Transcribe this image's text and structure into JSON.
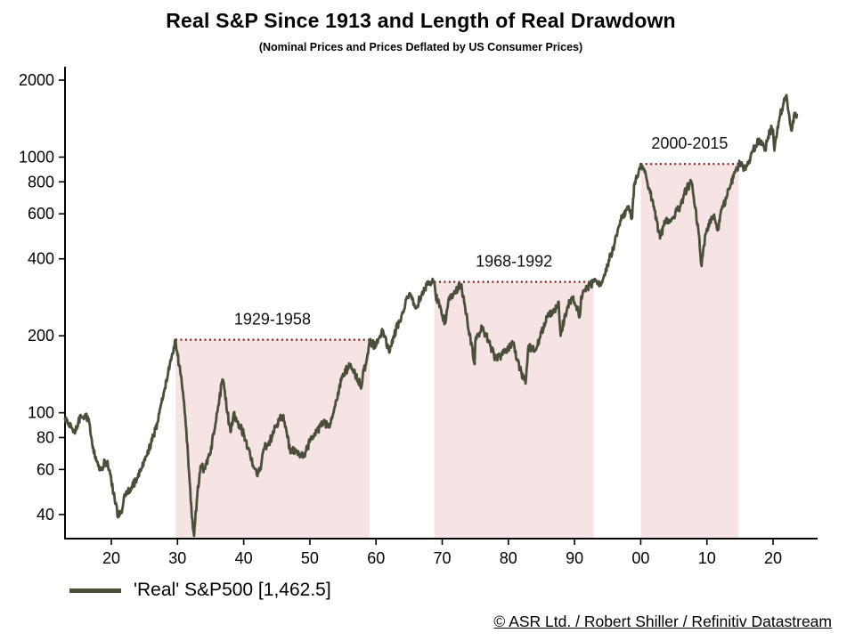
{
  "colors": {
    "line": "#4a4f3a",
    "region_fill": "#f6e3e3",
    "drawdown_line": "#8c1a1a",
    "axis": "#000000",
    "background": "#ffffff"
  },
  "chart_data": {
    "type": "line",
    "title": "Real S&P Since 1913 and Length of Real Drawdown",
    "subtitle": "(Nominal Prices and Prices Deflated by US Consumer Prices)",
    "source": "© ASR Ltd. / Robert Shiller / Refinitiv Datastream",
    "legend_label": "'Real' S&P500 [1,462.5]",
    "legend_position": "bottom-left",
    "grid": false,
    "y_scale": "log",
    "y_ticks": [
      2000,
      1000,
      800,
      600,
      400,
      200,
      100,
      80,
      60,
      40
    ],
    "y_range": [
      32,
      2255
    ],
    "x_range": [
      1913,
      2027
    ],
    "x_ticks": [
      {
        "year": 1920,
        "label": "20"
      },
      {
        "year": 1930,
        "label": "30"
      },
      {
        "year": 1940,
        "label": "40"
      },
      {
        "year": 1950,
        "label": "50"
      },
      {
        "year": 1960,
        "label": "60"
      },
      {
        "year": 1970,
        "label": "70"
      },
      {
        "year": 1980,
        "label": "80"
      },
      {
        "year": 1990,
        "label": "90"
      },
      {
        "year": 2000,
        "label": "00"
      },
      {
        "year": 2010,
        "label": "10"
      },
      {
        "year": 2020,
        "label": "20"
      }
    ],
    "drawdowns": [
      {
        "label": "1929-1958",
        "start_year": 1929.7,
        "end_year": 1959,
        "level": 193
      },
      {
        "label": "1968-1992",
        "start_year": 1968.8,
        "end_year": 1992.9,
        "level": 325
      },
      {
        "label": "2000-2015",
        "start_year": 2000,
        "end_year": 2014.8,
        "level": 940
      }
    ],
    "series": [
      {
        "name": "'Real' S&P500",
        "latest": 1462.5,
        "points": [
          [
            1913,
            95
          ],
          [
            1913.5,
            90
          ],
          [
            1914,
            87
          ],
          [
            1914.5,
            83
          ],
          [
            1915,
            92
          ],
          [
            1915.5,
            96
          ],
          [
            1916,
            98
          ],
          [
            1916.5,
            94
          ],
          [
            1917,
            80
          ],
          [
            1917.5,
            68
          ],
          [
            1918,
            62
          ],
          [
            1918.5,
            60
          ],
          [
            1919,
            65
          ],
          [
            1919.5,
            62
          ],
          [
            1920,
            54
          ],
          [
            1920.5,
            46
          ],
          [
            1921,
            39
          ],
          [
            1921.5,
            41
          ],
          [
            1922,
            48
          ],
          [
            1923,
            51
          ],
          [
            1924,
            56
          ],
          [
            1925,
            66
          ],
          [
            1926,
            76
          ],
          [
            1927,
            92
          ],
          [
            1928,
            122
          ],
          [
            1929,
            160
          ],
          [
            1929.7,
            193
          ],
          [
            1930,
            168
          ],
          [
            1930.5,
            140
          ],
          [
            1931,
            110
          ],
          [
            1931.5,
            75
          ],
          [
            1932,
            45
          ],
          [
            1932.5,
            33
          ],
          [
            1933,
            48
          ],
          [
            1933.5,
            62
          ],
          [
            1934,
            60
          ],
          [
            1935,
            70
          ],
          [
            1936,
            100
          ],
          [
            1936.8,
            135
          ],
          [
            1937,
            130
          ],
          [
            1937.8,
            90
          ],
          [
            1938,
            84
          ],
          [
            1938.5,
            100
          ],
          [
            1939,
            92
          ],
          [
            1940,
            83
          ],
          [
            1941,
            68
          ],
          [
            1942,
            57
          ],
          [
            1942.5,
            60
          ],
          [
            1943,
            72
          ],
          [
            1944,
            78
          ],
          [
            1945,
            90
          ],
          [
            1946,
            98
          ],
          [
            1946.6,
            80
          ],
          [
            1947,
            72
          ],
          [
            1948,
            71
          ],
          [
            1949,
            67
          ],
          [
            1950,
            77
          ],
          [
            1951,
            84
          ],
          [
            1952,
            91
          ],
          [
            1953,
            88
          ],
          [
            1954,
            112
          ],
          [
            1955,
            142
          ],
          [
            1956,
            152
          ],
          [
            1957,
            140
          ],
          [
            1957.8,
            126
          ],
          [
            1958,
            140
          ],
          [
            1958.8,
            170
          ],
          [
            1959,
            190
          ],
          [
            1960,
            182
          ],
          [
            1961,
            210
          ],
          [
            1962,
            172
          ],
          [
            1963,
            210
          ],
          [
            1964,
            248
          ],
          [
            1965,
            292
          ],
          [
            1966,
            256
          ],
          [
            1967,
            298
          ],
          [
            1968,
            322
          ],
          [
            1968.8,
            325
          ],
          [
            1969,
            290
          ],
          [
            1970,
            240
          ],
          [
            1970.5,
            225
          ],
          [
            1971,
            280
          ],
          [
            1972,
            300
          ],
          [
            1972.9,
            318
          ],
          [
            1973,
            300
          ],
          [
            1973.8,
            230
          ],
          [
            1974,
            210
          ],
          [
            1974.9,
            155
          ],
          [
            1975,
            190
          ],
          [
            1976,
            215
          ],
          [
            1977,
            192
          ],
          [
            1978,
            162
          ],
          [
            1979,
            168
          ],
          [
            1980,
            178
          ],
          [
            1980.8,
            188
          ],
          [
            1981,
            172
          ],
          [
            1982,
            142
          ],
          [
            1982.6,
            130
          ],
          [
            1983,
            180
          ],
          [
            1984,
            176
          ],
          [
            1985,
            205
          ],
          [
            1986,
            245
          ],
          [
            1987,
            250
          ],
          [
            1987.6,
            272
          ],
          [
            1987.9,
            200
          ],
          [
            1988,
            210
          ],
          [
            1989,
            262
          ],
          [
            1989.8,
            285
          ],
          [
            1990,
            270
          ],
          [
            1990.8,
            240
          ],
          [
            1991,
            285
          ],
          [
            1992,
            310
          ],
          [
            1992.9,
            325
          ],
          [
            1993,
            330
          ],
          [
            1994,
            315
          ],
          [
            1995,
            380
          ],
          [
            1996,
            455
          ],
          [
            1997,
            565
          ],
          [
            1997.8,
            620
          ],
          [
            1998,
            640
          ],
          [
            1998.7,
            580
          ],
          [
            1999,
            780
          ],
          [
            1999.9,
            900
          ],
          [
            2000,
            940
          ],
          [
            2000.5,
            900
          ],
          [
            2001,
            800
          ],
          [
            2001.7,
            680
          ],
          [
            2002,
            640
          ],
          [
            2002.7,
            510
          ],
          [
            2003,
            490
          ],
          [
            2003.5,
            540
          ],
          [
            2004,
            565
          ],
          [
            2005,
            585
          ],
          [
            2006,
            645
          ],
          [
            2007,
            760
          ],
          [
            2007.7,
            795
          ],
          [
            2008,
            700
          ],
          [
            2008.7,
            520
          ],
          [
            2009,
            420
          ],
          [
            2009.2,
            375
          ],
          [
            2009.8,
            500
          ],
          [
            2010,
            525
          ],
          [
            2010.5,
            560
          ],
          [
            2011,
            590
          ],
          [
            2011.7,
            520
          ],
          [
            2012,
            590
          ],
          [
            2013,
            700
          ],
          [
            2014,
            830
          ],
          [
            2014.8,
            938
          ],
          [
            2015,
            940
          ],
          [
            2015.7,
            900
          ],
          [
            2016,
            920
          ],
          [
            2016.5,
            960
          ],
          [
            2017,
            1060
          ],
          [
            2017.9,
            1180
          ],
          [
            2018,
            1150
          ],
          [
            2018.9,
            1060
          ],
          [
            2019,
            1160
          ],
          [
            2019.8,
            1300
          ],
          [
            2020,
            1280
          ],
          [
            2020.2,
            1060
          ],
          [
            2020.6,
            1240
          ],
          [
            2021,
            1430
          ],
          [
            2021.5,
            1590
          ],
          [
            2021.95,
            1740
          ],
          [
            2022.2,
            1580
          ],
          [
            2022.5,
            1400
          ],
          [
            2022.75,
            1270
          ],
          [
            2023,
            1390
          ],
          [
            2023.3,
            1480
          ],
          [
            2023.6,
            1462.5
          ]
        ]
      }
    ]
  }
}
